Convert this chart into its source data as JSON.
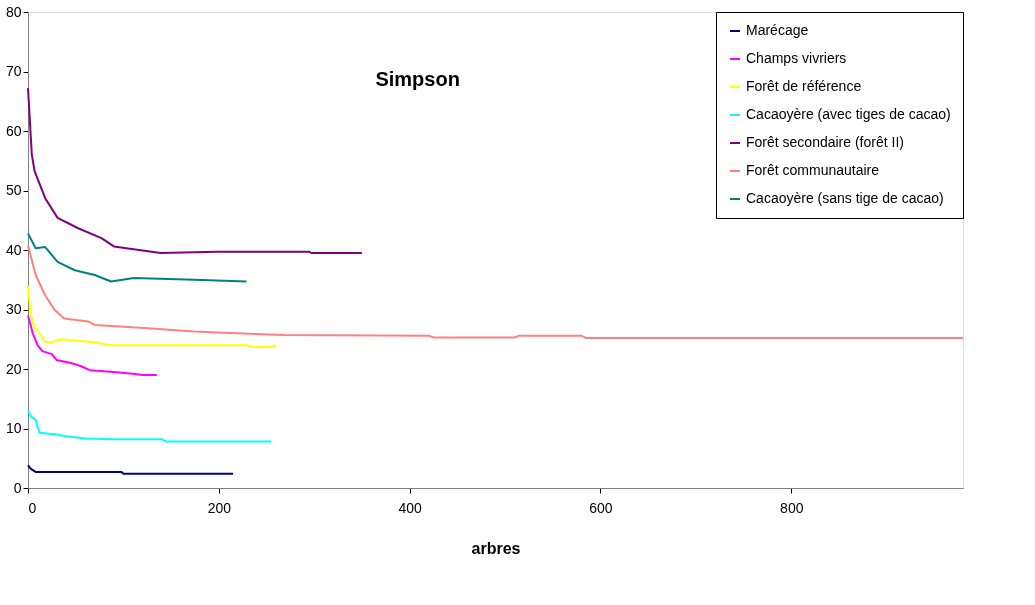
{
  "chart_data": {
    "type": "line",
    "title": "Simpson",
    "xlabel": "arbres",
    "xlim": [
      0,
      980
    ],
    "xticks": [
      0,
      200,
      400,
      600,
      800
    ],
    "ylim": [
      0,
      80
    ],
    "yticks": [
      0,
      10,
      20,
      30,
      40,
      50,
      60,
      70,
      80
    ],
    "grid": false,
    "legend": "top right",
    "marker": "none",
    "line_style": "solid",
    "series": [
      {
        "name": "Marécage",
        "color": "#000080",
        "x": [
          0,
          3,
          8,
          98,
          100,
          215
        ],
        "values": [
          3.8,
          3.2,
          2.7,
          2.7,
          2.4,
          2.4
        ]
      },
      {
        "name": "Champs vivriers",
        "color": "#ff00ff",
        "x": [
          0,
          5,
          10,
          15,
          25,
          30,
          45,
          55,
          65,
          90,
          110,
          120,
          135
        ],
        "values": [
          29,
          26,
          24,
          23,
          22.5,
          21.5,
          21,
          20.5,
          19.8,
          19.5,
          19.2,
          19,
          19
        ]
      },
      {
        "name": "Forêt de référence",
        "color": "#ffff00",
        "x": [
          0,
          3,
          7,
          12,
          18,
          25,
          35,
          70,
          85,
          150,
          230,
          235,
          255,
          260
        ],
        "values": [
          34,
          29,
          27,
          26,
          24.6,
          24.5,
          25,
          24.5,
          24,
          24,
          24,
          23.7,
          23.7,
          24
        ]
      },
      {
        "name": "Cacaoyère (avec tiges de cacao)",
        "color": "#00ffff",
        "x": [
          0,
          3,
          8,
          12,
          30,
          40,
          60,
          90,
          140,
          145,
          255
        ],
        "values": [
          13,
          12,
          11.5,
          9.3,
          9,
          8.7,
          8.3,
          8.2,
          8.2,
          7.8,
          7.8
        ]
      },
      {
        "name": " Forêt secondaire (forêt II)",
        "color": "#800080",
        "x": [
          0,
          4,
          7,
          18,
          31,
          52,
          77,
          90,
          139,
          198,
          295,
          297,
          350
        ],
        "values": [
          67.2,
          56,
          53.2,
          48.7,
          45.4,
          43.7,
          42,
          40.6,
          39.5,
          39.7,
          39.7,
          39.5,
          39.5
        ]
      },
      {
        "name": "Forêt communautaire",
        "color": "#ff8080",
        "x": [
          0,
          8,
          18,
          28,
          38,
          63,
          70,
          122,
          174,
          268,
          420,
          425,
          510,
          515,
          580,
          585,
          980
        ],
        "values": [
          40.8,
          35.8,
          32.4,
          29.9,
          28.5,
          28,
          27.4,
          26.9,
          26.3,
          25.7,
          25.6,
          25.3,
          25.3,
          25.6,
          25.6,
          25.2,
          25.2
        ]
      },
      {
        "name": "Cacaoyère (sans tige de cacao)",
        "color": "#008080",
        "x": [
          0,
          8,
          18,
          31,
          49,
          70,
          87,
          111,
          174,
          229
        ],
        "values": [
          42.8,
          40.3,
          40.5,
          38,
          36.6,
          35.8,
          34.7,
          35.3,
          35,
          34.7
        ]
      }
    ]
  }
}
